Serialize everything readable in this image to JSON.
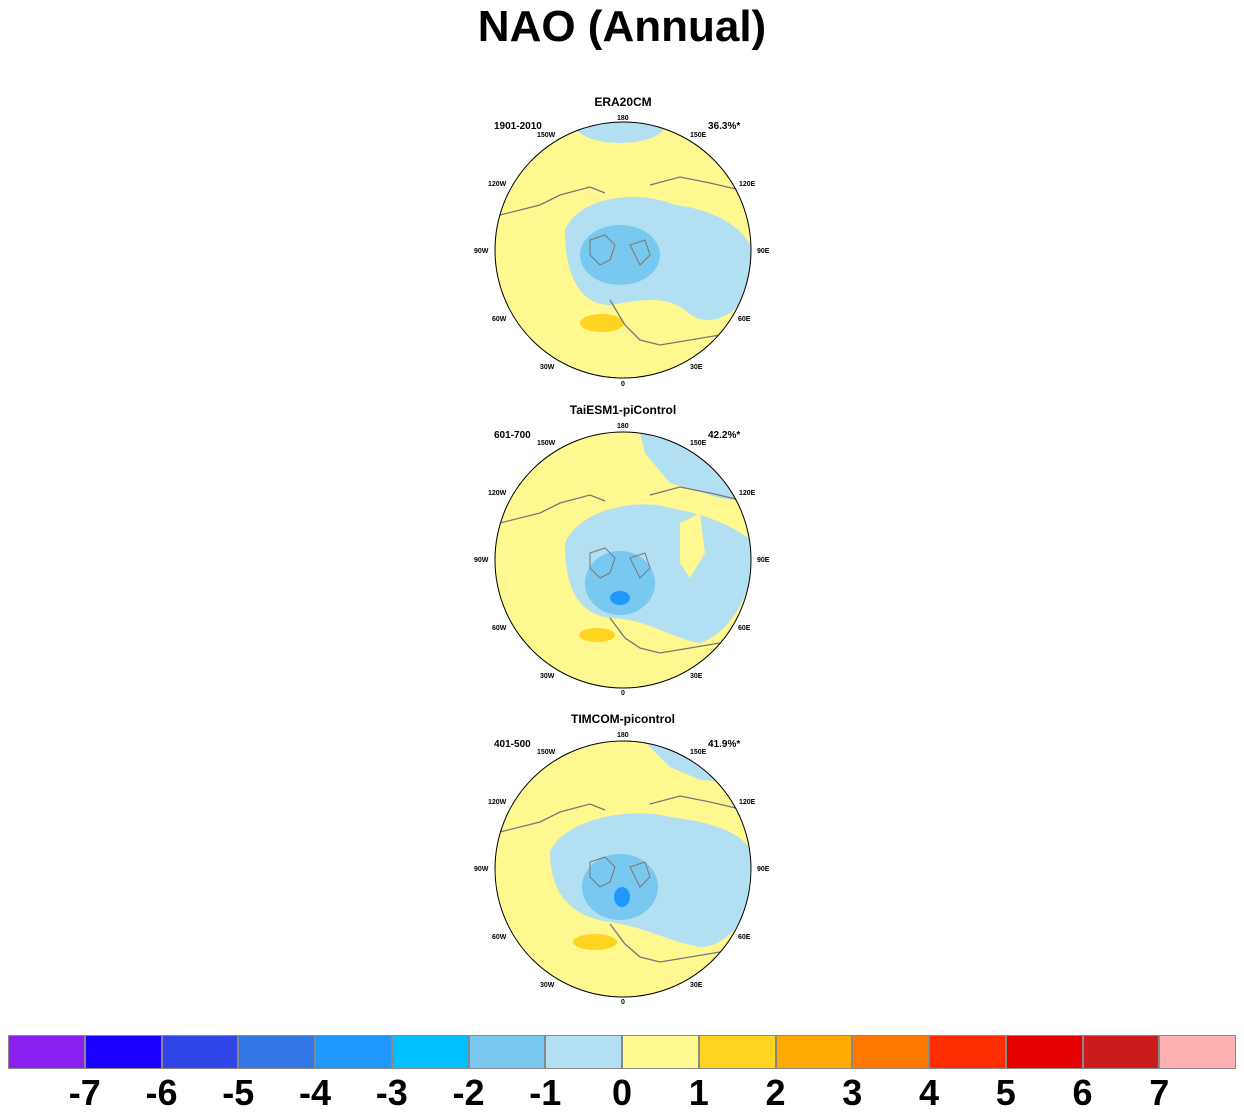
{
  "title": "NAO (Annual)",
  "panels": [
    {
      "name": "ERA20CM",
      "period": "1901-2010",
      "variance": "36.3%*"
    },
    {
      "name": "TaiESM1-piControl",
      "period": "601-700",
      "variance": "42.2%*"
    },
    {
      "name": "TIMCOM-picontrol",
      "period": "401-500",
      "variance": "41.9%*"
    }
  ],
  "lon_labels": {
    "l180": "180",
    "l150w": "150W",
    "l150e": "150E",
    "l120w": "120W",
    "l120e": "120E",
    "l90w": "90W",
    "l90e": "90E",
    "l60w": "60W",
    "l60e": "60E",
    "l30w": "30W",
    "l30e": "30E",
    "l0": "0"
  },
  "colorbar": {
    "colors": [
      "#8a1ff0",
      "#1c00ff",
      "#2f45e8",
      "#3275e4",
      "#1e98ff",
      "#00c0ff",
      "#78c8f0",
      "#b2dff2",
      "#fff78f",
      "#ffd421",
      "#ffaa00",
      "#ff7800",
      "#ff2e00",
      "#e40000",
      "#cc1b1b",
      "#ffb2b2"
    ],
    "labels": [
      "-7",
      "-6",
      "-5",
      "-4",
      "-3",
      "-2",
      "-1",
      "0",
      "1",
      "2",
      "3",
      "4",
      "5",
      "6",
      "7"
    ]
  }
}
